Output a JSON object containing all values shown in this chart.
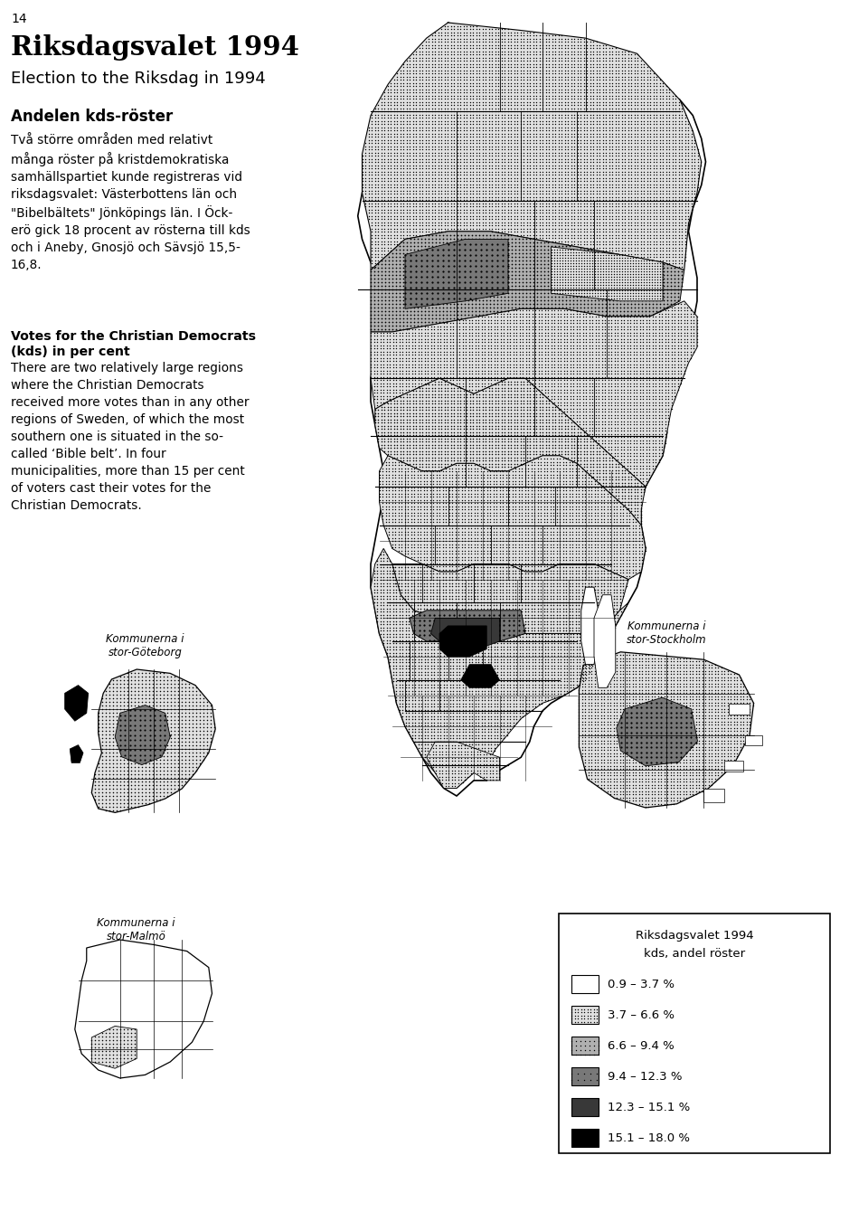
{
  "page_number": "14",
  "title_swedish": "Riksdagsvalet 1994",
  "title_english": "Election to the Riksdag in 1994",
  "section_title_swedish": "Andelen kds-röster",
  "body_text_swedish": "Två större områden med relativt\nmånga röster på kristdemokratiska\nsamhällspartiet kunde registreras vid\nriksdagsvalet: Västerbottens län och\n\"Bibelbältets\" Jönköpings län. I Öck-\nerö gick 18 procent av rösterna till kds\noch i Aneby, Gnosjö och Sävsjö 15,5-\n16,8.",
  "section_title_english_bold": "Votes for the Christian Democrats\n(kds) in per cent",
  "body_text_english": "There are two relatively large regions\nwhere the Christian Democrats\nreceived more votes than in any other\nregions of Sweden, of which the most\nsouthern one is situated in the so-\ncalled ‘Bible belt’. In four\nmunicipalities, more than 15 per cent\nof voters cast their votes for the\nChristian Democrats.",
  "legend_title_line1": "Riksdagsvalet 1994",
  "legend_title_line2": "kds, andel röster",
  "legend_items": [
    {
      "label": "0.9 – 3.7 %",
      "fill": "white",
      "pattern": "none"
    },
    {
      "label": "3.7 – 6.6 %",
      "fill": "#e8e8e8",
      "pattern": "dots_fine"
    },
    {
      "label": "6.6 – 9.4 %",
      "fill": "#b8b8b8",
      "pattern": "dots_medium"
    },
    {
      "label": "9.4 – 12.3 %",
      "fill": "#787878",
      "pattern": "dots_coarse"
    },
    {
      "label": "12.3 – 15.1 %",
      "fill": "#303030",
      "pattern": "none"
    },
    {
      "label": "15.1 – 18.0 %",
      "fill": "#000000",
      "pattern": "none"
    }
  ],
  "map_label_goteborg": "Kommunerna i\nstor-Göteborg",
  "map_label_stockholm": "Kommunerna i\nstor-Stockholm",
  "map_label_malmo": "Kommunerna i\nstor-Malmö",
  "background_color": "#ffffff"
}
